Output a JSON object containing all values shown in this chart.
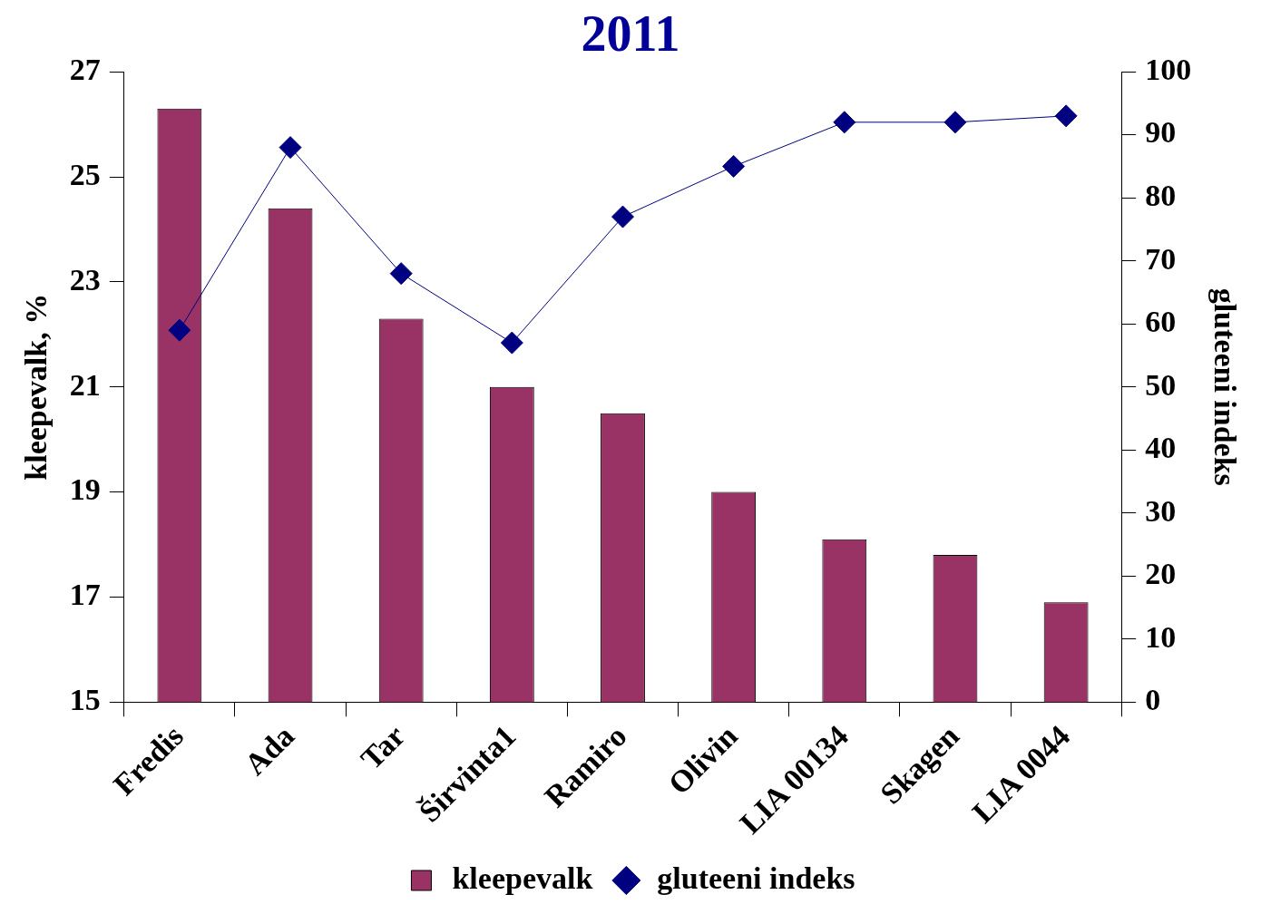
{
  "chart_data": {
    "type": "bar",
    "title": "2011",
    "categories": [
      "Fredis",
      "Ada",
      "Tar",
      "Širvinta1",
      "Ramiro",
      "Olivin",
      "LIA 00134",
      "Skagen",
      "LIA 0044"
    ],
    "series": [
      {
        "name": "kleepevalk",
        "color": "#993366",
        "values": [
          26.3,
          24.4,
          22.3,
          21.0,
          20.5,
          19.0,
          18.1,
          17.8,
          16.9
        ]
      },
      {
        "name": "gluteeni indeks",
        "type": "line",
        "axis": "y2",
        "color": "#000080",
        "values": [
          59,
          88,
          68,
          57,
          77,
          85,
          92,
          92,
          93
        ]
      }
    ],
    "ylabel": "kleepevalk, %",
    "y2label": "gluteeni indeks",
    "ylim": [
      15,
      27
    ],
    "yticks": [
      15,
      17,
      19,
      21,
      23,
      25,
      27
    ],
    "y2lim": [
      0,
      100
    ],
    "y2ticks": [
      0,
      10,
      20,
      30,
      40,
      50,
      60,
      70,
      80,
      90,
      100
    ],
    "legend": "bottom",
    "grid": false,
    "marker": "diamond",
    "line_style": "solid"
  }
}
